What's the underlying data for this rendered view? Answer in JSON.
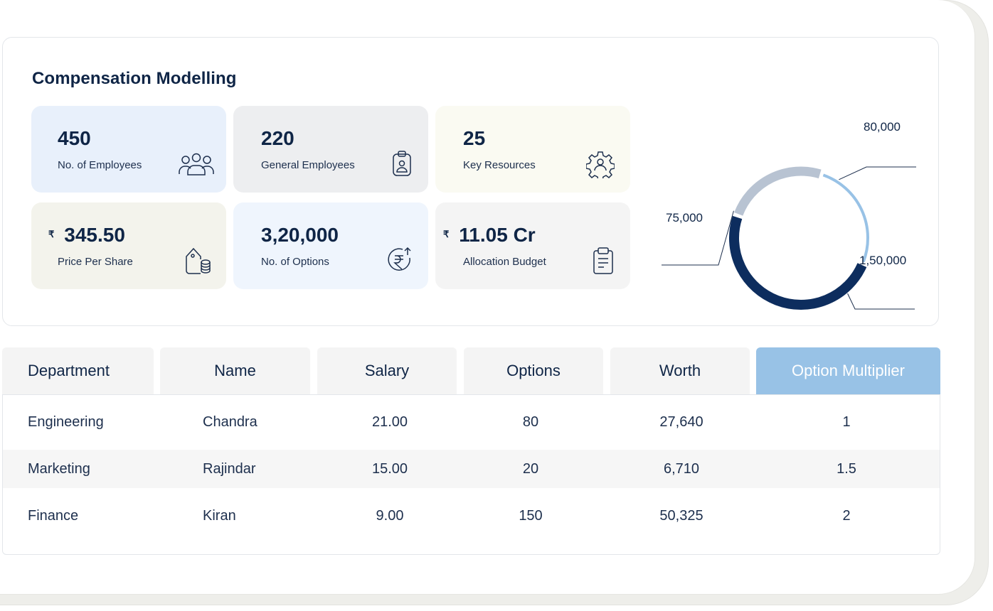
{
  "title": "Compensation Modelling",
  "stats": [
    {
      "value": "450",
      "label": "No. of Employees",
      "icon": "employees-group-icon",
      "bg": "#e8f0fb"
    },
    {
      "value": "220",
      "label": "General Employees",
      "icon": "id-badge-icon",
      "bg": "#edeef0"
    },
    {
      "value": "25",
      "label": "Key Resources",
      "icon": "gear-person-icon",
      "bg": "#fafaf2"
    },
    {
      "currency": "₹",
      "value": "345.50",
      "label": "Price Per Share",
      "icon": "price-tag-coins-icon",
      "bg": "#f3f3ec"
    },
    {
      "value": "3,20,000",
      "label": "No. of Options",
      "icon": "rupee-up-icon",
      "bg": "#eff5fd"
    },
    {
      "currency": "₹",
      "value": "11.05 Cr",
      "label": "Allocation Budget",
      "icon": "clipboard-icon",
      "bg": "#f4f4f4"
    }
  ],
  "chart_data": {
    "type": "pie",
    "values": [
      80000,
      150000,
      75000
    ],
    "labels": [
      "80,000",
      "1,50,000",
      "75,000"
    ],
    "colors": [
      "#98c2e6",
      "#0d2d5e",
      "#b8c3d2"
    ]
  },
  "table": {
    "columns": [
      "Department",
      "Name",
      "Salary",
      "Options",
      "Worth",
      "Option Multiplier"
    ],
    "active_column": "Option Multiplier",
    "rows": [
      [
        "Engineering",
        "Chandra",
        "21.00",
        "80",
        "27,640",
        "1"
      ],
      [
        "Marketing",
        "Rajindar",
        "15.00",
        "20",
        "6,710",
        "1.5"
      ],
      [
        "Finance",
        "Kiran",
        "9.00",
        "150",
        "50,325",
        "2"
      ]
    ]
  }
}
